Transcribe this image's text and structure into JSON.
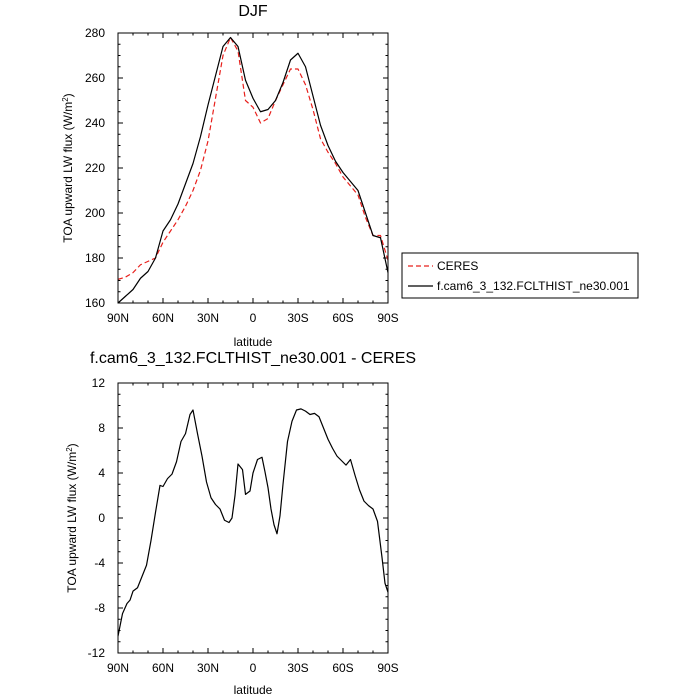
{
  "chart_data": [
    {
      "type": "line",
      "title": "DJF",
      "xlabel": "latitude",
      "ylabel": "TOA upward LW flux (W/m",
      "ylabel_sup": "2",
      "ylabel_end": ")",
      "xlim": [
        -90,
        90
      ],
      "ylim": [
        160,
        280
      ],
      "x_ticks": [
        -90,
        -60,
        -30,
        0,
        30,
        60,
        90
      ],
      "x_tick_labels": [
        "90N",
        "60N",
        "30N",
        "0",
        "30S",
        "60S",
        "90S"
      ],
      "y_ticks": [
        160,
        180,
        200,
        220,
        240,
        260,
        280
      ],
      "y_tick_labels": [
        "160",
        "180",
        "200",
        "220",
        "240",
        "260",
        "280"
      ],
      "legend_position": "right",
      "series": [
        {
          "name": "CERES",
          "color": "#e8201c",
          "dash": "dashed",
          "points": [
            [
              -90,
              170.5
            ],
            [
              -85,
              171.5
            ],
            [
              -80,
              173.5
            ],
            [
              -75,
              177
            ],
            [
              -70,
              178.5
            ],
            [
              -65,
              180
            ],
            [
              -60,
              187
            ],
            [
              -55,
              192
            ],
            [
              -50,
              197
            ],
            [
              -45,
              203
            ],
            [
              -40,
              210
            ],
            [
              -35,
              219
            ],
            [
              -30,
              232
            ],
            [
              -25,
              251
            ],
            [
              -20,
              270
            ],
            [
              -15,
              278
            ],
            [
              -10,
              272
            ],
            [
              -5,
              250
            ],
            [
              0,
              247
            ],
            [
              5,
              240
            ],
            [
              10,
              242
            ],
            [
              15,
              250
            ],
            [
              20,
              257
            ],
            [
              25,
              264
            ],
            [
              30,
              264
            ],
            [
              35,
              257
            ],
            [
              40,
              246
            ],
            [
              45,
              233
            ],
            [
              50,
              227
            ],
            [
              55,
              222
            ],
            [
              60,
              216
            ],
            [
              65,
              212
            ],
            [
              70,
              208
            ],
            [
              75,
              198
            ],
            [
              80,
              190
            ],
            [
              85,
              190
            ],
            [
              90,
              179
            ]
          ]
        },
        {
          "name": "f.cam6_3_132.FCLTHIST_ne30.001",
          "color": "#000000",
          "dash": "solid",
          "points": [
            [
              -90,
              160
            ],
            [
              -85,
              163
            ],
            [
              -80,
              166
            ],
            [
              -75,
              171
            ],
            [
              -70,
              174
            ],
            [
              -65,
              180
            ],
            [
              -60,
              192
            ],
            [
              -55,
              197
            ],
            [
              -50,
              204
            ],
            [
              -45,
              213
            ],
            [
              -40,
              222
            ],
            [
              -35,
              234
            ],
            [
              -30,
              248
            ],
            [
              -25,
              261
            ],
            [
              -20,
              274
            ],
            [
              -15,
              278
            ],
            [
              -10,
              274
            ],
            [
              -5,
              259
            ],
            [
              0,
              251
            ],
            [
              5,
              245
            ],
            [
              10,
              246
            ],
            [
              15,
              250
            ],
            [
              20,
              258
            ],
            [
              25,
              268
            ],
            [
              30,
              271
            ],
            [
              35,
              265
            ],
            [
              40,
              252
            ],
            [
              45,
              239
            ],
            [
              50,
              230
            ],
            [
              55,
              223
            ],
            [
              60,
              218
            ],
            [
              65,
              214
            ],
            [
              70,
              210
            ],
            [
              75,
              200
            ],
            [
              80,
              190
            ],
            [
              85,
              189
            ],
            [
              90,
              173.5
            ]
          ]
        }
      ]
    },
    {
      "type": "line",
      "title": "f.cam6_3_132.FCLTHIST_ne30.001 - CERES",
      "xlabel": "latitude",
      "ylabel": "TOA upward LW flux (W/m",
      "ylabel_sup": "2",
      "ylabel_end": ")",
      "xlim": [
        -90,
        90
      ],
      "ylim": [
        -12,
        12
      ],
      "x_ticks": [
        -90,
        -60,
        -30,
        0,
        30,
        60,
        90
      ],
      "x_tick_labels": [
        "90N",
        "60N",
        "30N",
        "0",
        "30S",
        "60S",
        "90S"
      ],
      "y_ticks": [
        -12,
        -8,
        -4,
        0,
        4,
        8,
        12
      ],
      "y_tick_labels": [
        "-12",
        "-8",
        "-4",
        "0",
        "4",
        "8",
        "12"
      ],
      "series": [
        {
          "name": "",
          "color": "#000000",
          "dash": "solid",
          "points": [
            [
              -90,
              -10.5
            ],
            [
              -87,
              -8.5
            ],
            [
              -84,
              -7.6
            ],
            [
              -82,
              -7.3
            ],
            [
              -80,
              -6.5
            ],
            [
              -77,
              -6.2
            ],
            [
              -74,
              -5.2
            ],
            [
              -71,
              -4.2
            ],
            [
              -68,
              -2
            ],
            [
              -65,
              0.5
            ],
            [
              -62,
              2.9
            ],
            [
              -60,
              2.8
            ],
            [
              -57,
              3.5
            ],
            [
              -54,
              3.9
            ],
            [
              -51,
              5
            ],
            [
              -48,
              6.8
            ],
            [
              -45,
              7.5
            ],
            [
              -42,
              9.2
            ],
            [
              -40,
              9.6
            ],
            [
              -37,
              7.5
            ],
            [
              -34,
              5.5
            ],
            [
              -31,
              3.2
            ],
            [
              -28,
              1.8
            ],
            [
              -25,
              1.2
            ],
            [
              -22,
              0.8
            ],
            [
              -19,
              -0.2
            ],
            [
              -16,
              -0.4
            ],
            [
              -14,
              0
            ],
            [
              -12,
              2
            ],
            [
              -10,
              4.8
            ],
            [
              -7,
              4.3
            ],
            [
              -5,
              2.1
            ],
            [
              -2,
              2.4
            ],
            [
              0,
              4
            ],
            [
              3,
              5.2
            ],
            [
              6,
              5.4
            ],
            [
              8,
              4.1
            ],
            [
              10,
              2.7
            ],
            [
              12,
              0.8
            ],
            [
              14,
              -0.6
            ],
            [
              16,
              -1.4
            ],
            [
              18,
              0.2
            ],
            [
              20,
              3
            ],
            [
              23,
              6.8
            ],
            [
              26,
              8.6
            ],
            [
              29,
              9.6
            ],
            [
              32,
              9.7
            ],
            [
              35,
              9.5
            ],
            [
              38,
              9.2
            ],
            [
              41,
              9.3
            ],
            [
              44,
              9
            ],
            [
              47,
              8
            ],
            [
              50,
              7
            ],
            [
              53,
              6.2
            ],
            [
              56,
              5.5
            ],
            [
              59,
              5.1
            ],
            [
              62,
              4.7
            ],
            [
              65,
              5.2
            ],
            [
              68,
              3.8
            ],
            [
              71,
              2.5
            ],
            [
              74,
              1.5
            ],
            [
              77,
              1.1
            ],
            [
              80,
              0.8
            ],
            [
              83,
              -0.3
            ],
            [
              86,
              -3.5
            ],
            [
              88,
              -5.8
            ],
            [
              90,
              -6.6
            ]
          ]
        }
      ]
    }
  ]
}
